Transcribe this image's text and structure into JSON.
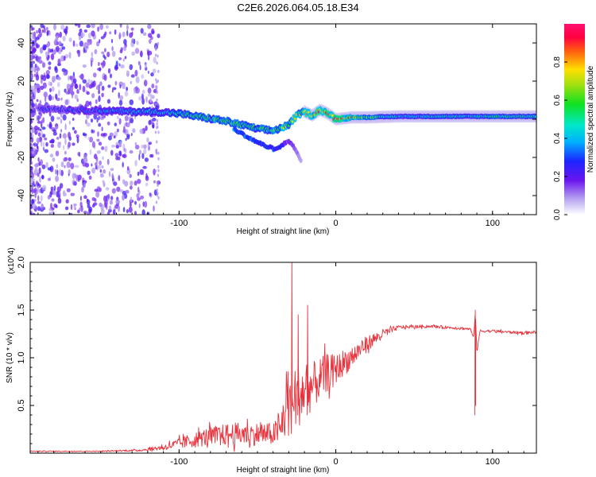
{
  "title": "C2E6.2026.064.05.18.E34",
  "chart_data": [
    {
      "type": "heatmap",
      "title": "C2E6.2026.064.05.18.E34",
      "xlabel": "Height of straight line (km)",
      "ylabel": "Frequency (Hz)",
      "xlim": [
        -195,
        128
      ],
      "ylim": [
        -50,
        50
      ],
      "x_ticks": [
        -100,
        0,
        100
      ],
      "y_ticks": [
        -40,
        -20,
        0,
        20,
        40
      ],
      "colorbar": {
        "label": "Normalized spectral amplitude",
        "range": [
          0,
          1
        ],
        "ticks": [
          0.0,
          0.2,
          0.4,
          0.6,
          0.8
        ]
      },
      "ridge": {
        "name": "main frequency ridge",
        "x": [
          -190,
          -170,
          -150,
          -130,
          -115,
          -100,
          -85,
          -70,
          -60,
          -50,
          -40,
          -30,
          -25,
          -20,
          -15,
          -10,
          -5,
          0,
          10,
          20,
          40,
          60,
          80,
          100,
          128
        ],
        "frequency": [
          6,
          5,
          4.5,
          4,
          4,
          3,
          1,
          -1,
          -3,
          -5,
          -6,
          -3,
          2,
          4,
          2,
          5,
          3,
          0,
          1,
          1,
          1.5,
          1.5,
          1.5,
          1.5,
          1.5
        ],
        "amplitude": [
          0.25,
          0.3,
          0.35,
          0.4,
          0.45,
          0.5,
          0.55,
          0.6,
          0.6,
          0.55,
          0.6,
          0.7,
          0.7,
          0.75,
          0.8,
          0.85,
          0.85,
          0.9,
          0.8,
          0.6,
          0.45,
          0.45,
          0.45,
          0.5,
          0.5
        ]
      },
      "branch": {
        "name": "secondary branch",
        "x": [
          -65,
          -55,
          -45,
          -38,
          -30,
          -25,
          -22
        ],
        "frequency": [
          -5,
          -10,
          -14,
          -16,
          -11,
          -17,
          -22
        ],
        "amplitude": [
          0.35,
          0.3,
          0.25,
          0.3,
          0.15,
          0.12,
          0.08
        ]
      }
    },
    {
      "type": "line",
      "title": "",
      "xlabel": "Height of straight line (km)",
      "ylabel": "SNR (10 * v/v)",
      "y_multiplier": "(x10^4)",
      "xlim": [
        -195,
        128
      ],
      "ylim": [
        0,
        2.0
      ],
      "x_ticks": [
        -100,
        0,
        100
      ],
      "y_ticks": [
        0.5,
        1.0,
        1.5,
        2.0
      ],
      "series": [
        {
          "name": "SNR",
          "color": "#e8323c",
          "x": [
            -195,
            -150,
            -125,
            -110,
            -95,
            -80,
            -65,
            -50,
            -40,
            -35,
            -32,
            -25,
            -20,
            -15,
            -10,
            -5,
            0,
            5,
            10,
            15,
            20,
            30,
            40,
            60,
            80,
            86,
            88,
            89,
            90,
            92,
            100,
            110,
            120,
            128
          ],
          "y": [
            0.02,
            0.02,
            0.03,
            0.06,
            0.12,
            0.18,
            0.2,
            0.2,
            0.2,
            0.25,
            0.5,
            0.6,
            0.65,
            0.7,
            0.78,
            0.85,
            0.88,
            0.95,
            1.0,
            1.08,
            1.15,
            1.25,
            1.32,
            1.33,
            1.31,
            1.3,
            1.2,
            1.5,
            1.05,
            1.28,
            1.28,
            1.27,
            1.26,
            1.27
          ],
          "noise": [
            0.005,
            0.005,
            0.01,
            0.03,
            0.07,
            0.1,
            0.12,
            0.12,
            0.12,
            0.15,
            0.4,
            0.35,
            0.3,
            0.25,
            0.22,
            0.2,
            0.15,
            0.14,
            0.12,
            0.1,
            0.08,
            0.05,
            0.02,
            0.015,
            0.015,
            0.015,
            0.015,
            0.015,
            0.015,
            0.015,
            0.015,
            0.015,
            0.015,
            0.015
          ]
        }
      ],
      "peaks": [
        {
          "x": -28,
          "y": 2.0
        },
        {
          "x": -18,
          "y": 1.55
        },
        {
          "x": -24,
          "y": 1.45
        },
        {
          "x": 89,
          "y": 1.5
        }
      ]
    }
  ]
}
